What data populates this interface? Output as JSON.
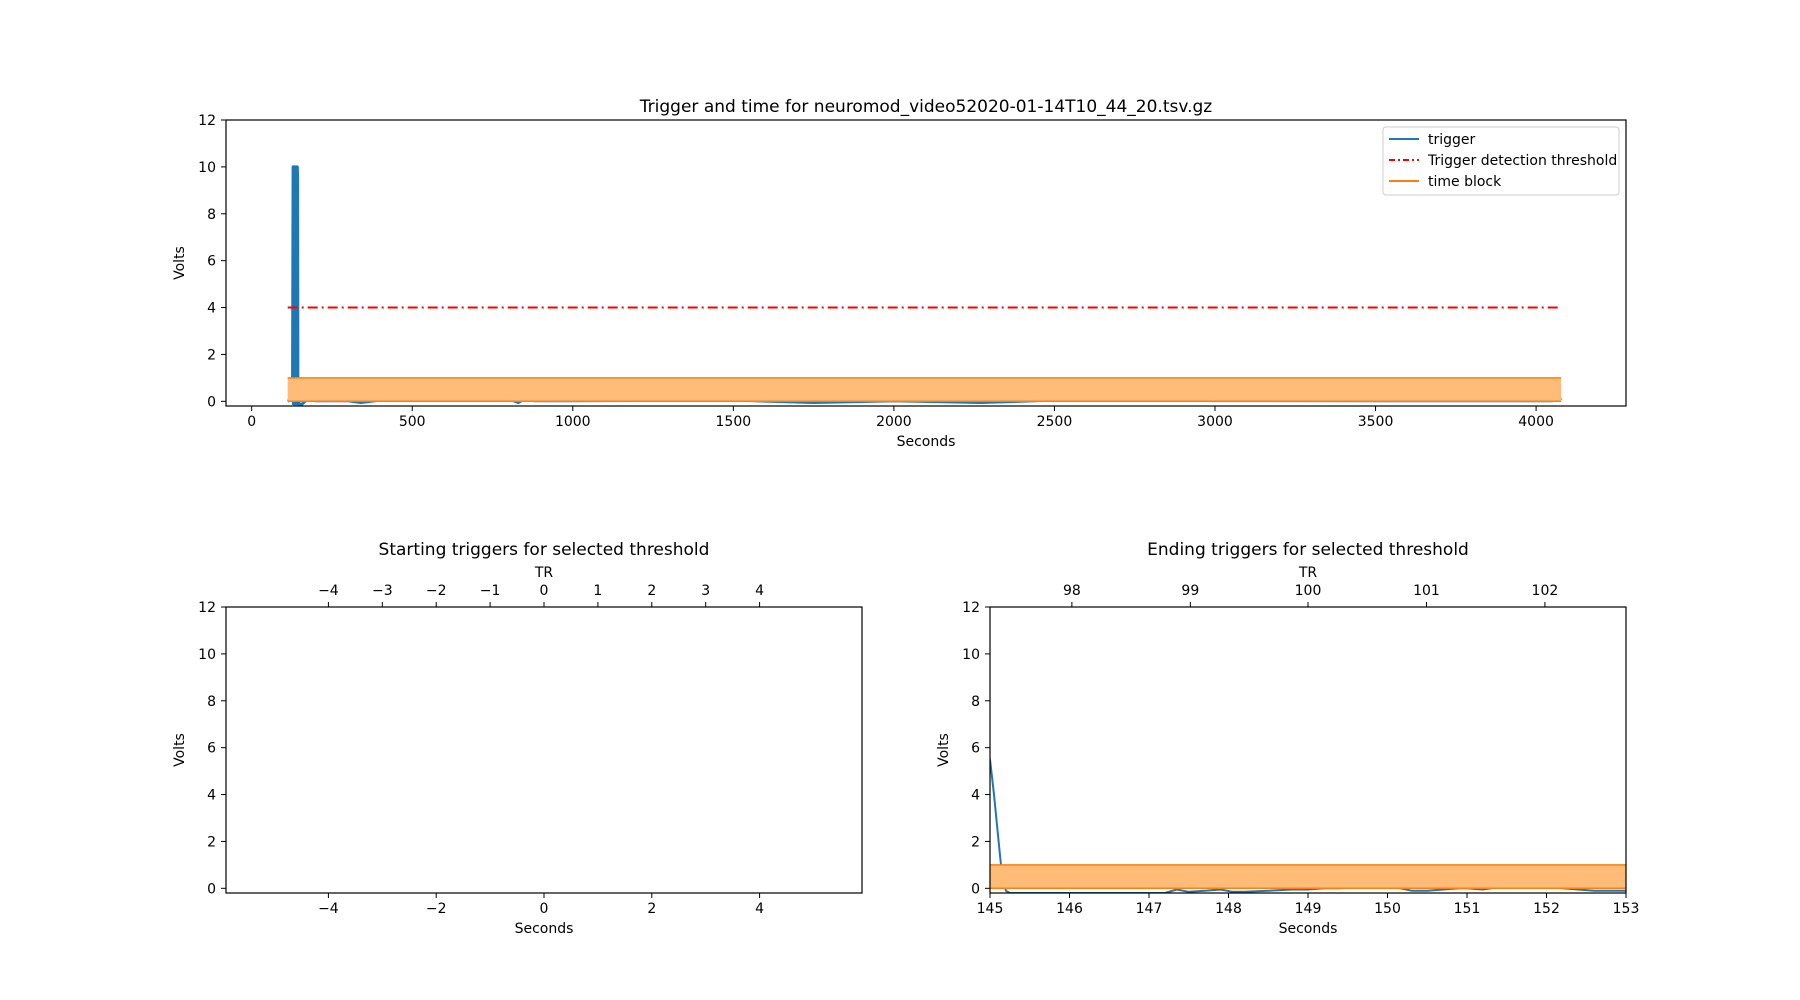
{
  "colors": {
    "trigger": "#1f77b4",
    "threshold": "#ff0000",
    "time_block_edge": "#ff7f0e",
    "time_block_fill": "#ffbb78"
  },
  "chart_data": [
    {
      "type": "line",
      "title": "Trigger and time for neuromod_video52020-01-14T10_44_20.tsv.gz",
      "xlabel": "Seconds",
      "ylabel": "Volts",
      "xlim": [
        -80,
        4280
      ],
      "ylim": [
        -0.2,
        12
      ],
      "xticks": [
        0,
        500,
        1000,
        1500,
        2000,
        2500,
        3000,
        3500,
        4000
      ],
      "yticks": [
        0,
        2,
        4,
        6,
        8,
        10,
        12
      ],
      "legend": {
        "position": "top-right",
        "entries": [
          "trigger",
          "Trigger detection threshold",
          "time block"
        ]
      },
      "series": [
        {
          "name": "trigger",
          "style": "solid",
          "x": [
            112,
            118,
            124,
            127,
            129,
            130,
            131,
            132,
            133,
            134,
            135,
            136,
            137,
            138,
            139,
            140,
            141,
            142,
            143,
            144,
            145,
            146,
            150,
            170,
            200,
            300,
            340,
            400,
            420,
            500,
            700,
            800,
            830,
            850,
            880,
            1000,
            1500,
            1750,
            2000,
            2270,
            2500,
            2560,
            3000,
            3500,
            4000,
            4050,
            4070,
            4078
          ],
          "y": [
            0,
            0.05,
            0.05,
            0.1,
            10,
            -0.1,
            10,
            -0.1,
            10,
            10,
            -0.1,
            10,
            10,
            -0.1,
            10,
            10,
            -0.1,
            10,
            9.5,
            -0.1,
            0.3,
            0,
            -0.2,
            0.05,
            0.02,
            0.02,
            -0.05,
            0.05,
            0.15,
            0.05,
            0.05,
            0.1,
            -0.05,
            0.1,
            0.02,
            0.02,
            0.05,
            -0.05,
            0.02,
            -0.05,
            0.05,
            0.1,
            0.03,
            0.02,
            0.02,
            0.02,
            0.15,
            0.05
          ]
        },
        {
          "name": "Trigger detection threshold",
          "style": "dashdot",
          "x": [
            112,
            4078
          ],
          "y": [
            4,
            4
          ]
        },
        {
          "name": "time block",
          "style": "filled-band",
          "x": [
            112,
            4078
          ],
          "y": [
            0,
            1
          ]
        }
      ]
    },
    {
      "type": "line",
      "title": "Starting triggers for selected threshold",
      "xlabel": "Seconds",
      "ylabel": "Volts",
      "top_xlabel": "TR",
      "xlim": [
        -5.9,
        5.9
      ],
      "ylim": [
        -0.2,
        12
      ],
      "xticks": [
        -4,
        -2,
        0,
        2,
        4
      ],
      "top_xticks": [
        -4,
        -3,
        -2,
        -1,
        0,
        1,
        2,
        3,
        4
      ],
      "yticks": [
        0,
        2,
        4,
        6,
        8,
        10,
        12
      ],
      "series": []
    },
    {
      "type": "line",
      "title": "Ending triggers for selected threshold",
      "xlabel": "Seconds",
      "ylabel": "Volts",
      "top_xlabel": "TR",
      "xlim": [
        145,
        153
      ],
      "ylim": [
        -0.2,
        12
      ],
      "xticks": [
        145,
        146,
        147,
        148,
        149,
        150,
        151,
        152,
        153
      ],
      "top_xticks": [
        98,
        99,
        100,
        101,
        102
      ],
      "top_xticks_seconds": [
        146.03,
        147.52,
        149.0,
        150.49,
        151.98
      ],
      "yticks": [
        0,
        2,
        4,
        6,
        8,
        10,
        12
      ],
      "series": [
        {
          "name": "trigger",
          "style": "solid",
          "x": [
            145,
            145.05,
            145.1,
            145.15,
            145.2,
            145.25,
            145.3,
            147.2,
            147.35,
            147.5,
            147.7,
            147.9,
            148.05,
            148.2,
            148.5,
            148.8,
            149.0,
            149.2,
            149.4,
            149.6,
            149.75,
            149.9,
            150.0,
            150.1,
            150.3,
            150.5,
            150.7,
            150.9,
            151.0,
            151.2,
            151.4,
            151.55,
            151.7,
            151.85,
            152.0,
            152.2,
            152.4,
            152.6,
            152.8,
            153
          ],
          "y": [
            5.5,
            4,
            2.3,
            0.6,
            -0.1,
            -0.2,
            -0.2,
            -0.2,
            -0.05,
            -0.15,
            -0.1,
            -0.05,
            -0.15,
            -0.15,
            -0.1,
            -0.05,
            -0.05,
            0.0,
            0.0,
            0.08,
            0.1,
            0.22,
            0.2,
            0.05,
            -0.1,
            -0.1,
            -0.05,
            0.0,
            0.0,
            -0.05,
            0.05,
            0.15,
            0.25,
            0.25,
            0.1,
            0.0,
            -0.05,
            -0.1,
            -0.1,
            -0.1
          ]
        },
        {
          "name": "time block",
          "style": "filled-band",
          "x": [
            145,
            153
          ],
          "y": [
            0,
            1
          ]
        }
      ]
    }
  ]
}
